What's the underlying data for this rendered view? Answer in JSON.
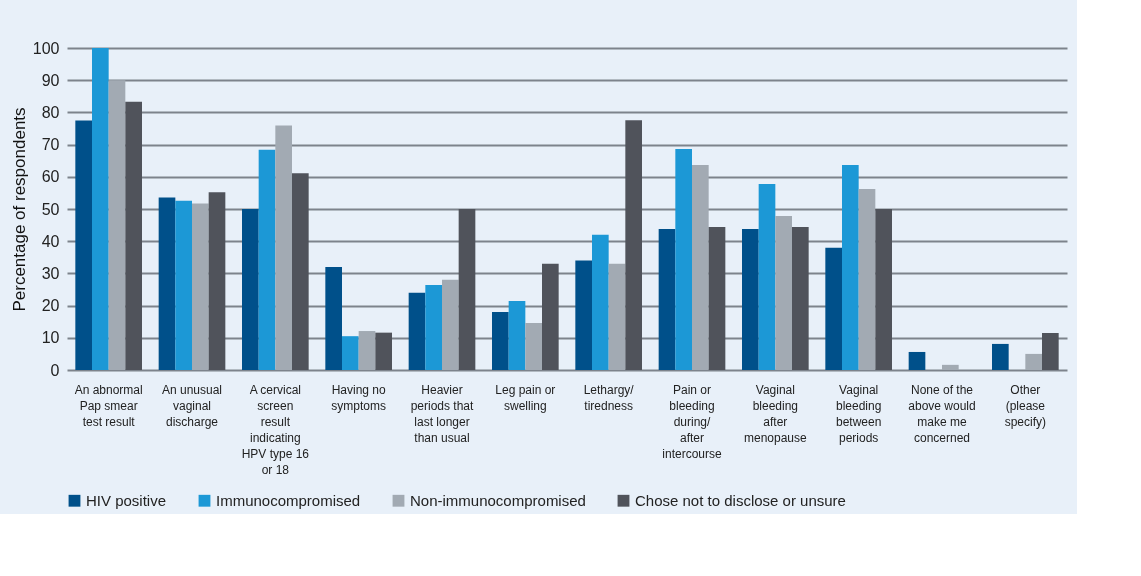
{
  "chart_data": {
    "type": "bar",
    "ylabel": "Percentage of respondents",
    "categories": [
      "An abnormal Pap smear test result",
      "An unusual vaginal discharge",
      "A cervical screen result indicating HPV type 16 or 18",
      "Having no symptoms",
      "Heavier periods that last longer than usual",
      "Leg pain or swelling",
      "Lethargy/ tiredness",
      "Pain or bleeding during/ after intercourse",
      "Vaginal bleeding after menopause",
      "Vaginal bleeding between periods",
      "None of the above would make me concerned",
      "Other (please specify)"
    ],
    "series": [
      {
        "name": "HIV positive",
        "color": "#00508a",
        "values": [
          77.5,
          53.6,
          50,
          32,
          24,
          18,
          34,
          43.8,
          43.8,
          38,
          5.6,
          8.1
        ]
      },
      {
        "name": "Immunocompromised",
        "color": "#1c98d6",
        "values": [
          100,
          52.6,
          68.4,
          10.5,
          26.4,
          21.4,
          42,
          68.6,
          57.8,
          63.7,
          0,
          0
        ]
      },
      {
        "name": "Non-immunocompromised",
        "color": "#a2aab3",
        "values": [
          90,
          51.7,
          75.9,
          12.1,
          28,
          14.6,
          33,
          63.7,
          47.8,
          56.2,
          1.6,
          5
        ]
      },
      {
        "name": "Chose not to disclose or unsure",
        "color": "#50535b",
        "values": [
          83.3,
          55.2,
          61.1,
          11.6,
          50,
          33,
          77.6,
          44.4,
          44.4,
          50,
          0,
          11.5
        ]
      }
    ],
    "ylim": [
      0,
      100
    ],
    "yticks": [
      0,
      10,
      20,
      30,
      40,
      50,
      60,
      70,
      80,
      90,
      100
    ],
    "grid": "y",
    "legend": "bottom"
  }
}
